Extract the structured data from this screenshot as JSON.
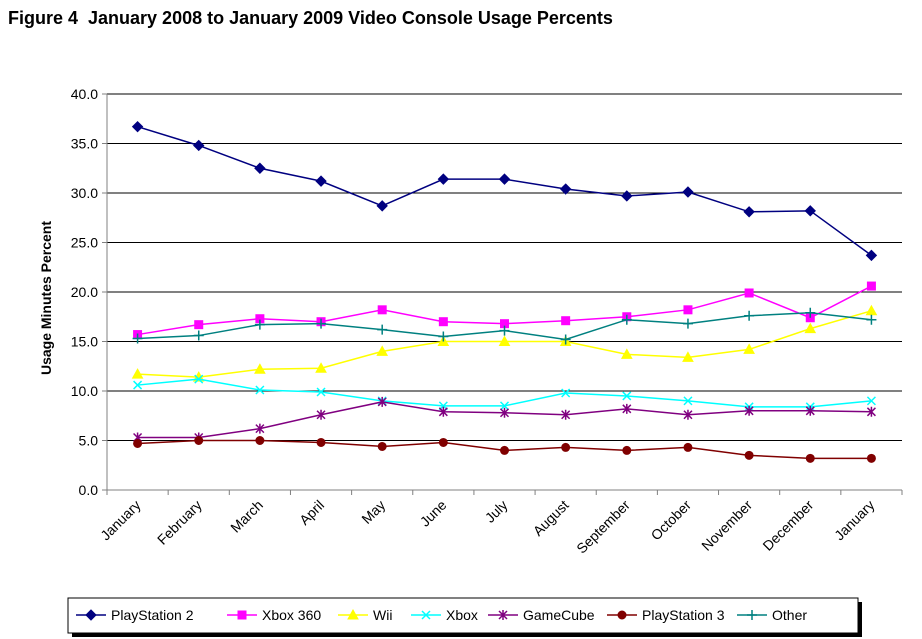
{
  "chart_data": {
    "type": "line",
    "title": "Figure 4  January 2008 to January 2009 Video Console Usage Percents",
    "xlabel": "",
    "ylabel": "Usage Minutes Percent",
    "ylim": [
      0,
      40
    ],
    "yticks": [
      "0.0",
      "5.0",
      "10.0",
      "15.0",
      "20.0",
      "25.0",
      "30.0",
      "35.0",
      "40.0"
    ],
    "grid": "horizontal",
    "legend_position": "bottom",
    "categories": [
      "January",
      "February",
      "March",
      "April",
      "May",
      "June",
      "July",
      "August",
      "September",
      "October",
      "November",
      "December",
      "January"
    ],
    "series": [
      {
        "name": "PlayStation 2",
        "color": "#000080",
        "marker": "diamond",
        "values": [
          36.7,
          34.8,
          32.5,
          31.2,
          28.7,
          31.4,
          31.4,
          30.4,
          29.7,
          30.1,
          28.1,
          28.2,
          23.7
        ]
      },
      {
        "name": "Xbox 360",
        "color": "#ff00ff",
        "marker": "square",
        "values": [
          15.7,
          16.7,
          17.3,
          17.0,
          18.2,
          17.0,
          16.8,
          17.1,
          17.5,
          18.2,
          19.9,
          17.4,
          20.6
        ]
      },
      {
        "name": "Wii",
        "color": "#ffff00",
        "marker": "triangle",
        "values": [
          11.7,
          11.4,
          12.2,
          12.3,
          14.0,
          15.0,
          15.0,
          15.0,
          13.7,
          13.4,
          14.2,
          16.3,
          18.1
        ]
      },
      {
        "name": "Xbox",
        "color": "#00ffff",
        "marker": "x",
        "values": [
          10.6,
          11.2,
          10.1,
          9.9,
          9.0,
          8.5,
          8.5,
          9.8,
          9.5,
          9.0,
          8.4,
          8.4,
          9.0
        ]
      },
      {
        "name": "GameCube",
        "color": "#800080",
        "marker": "star",
        "values": [
          5.3,
          5.3,
          6.2,
          7.6,
          8.9,
          7.9,
          7.8,
          7.6,
          8.2,
          7.6,
          8.0,
          8.0,
          7.9
        ]
      },
      {
        "name": "PlayStation 3",
        "color": "#800000",
        "marker": "circle",
        "values": [
          4.7,
          5.0,
          5.0,
          4.8,
          4.4,
          4.8,
          4.0,
          4.3,
          4.0,
          4.3,
          3.5,
          3.2,
          3.2
        ]
      },
      {
        "name": "Other",
        "color": "#008080",
        "marker": "plus",
        "values": [
          15.3,
          15.6,
          16.7,
          16.8,
          16.2,
          15.5,
          16.1,
          15.2,
          17.2,
          16.8,
          17.6,
          17.9,
          17.2
        ]
      }
    ]
  }
}
